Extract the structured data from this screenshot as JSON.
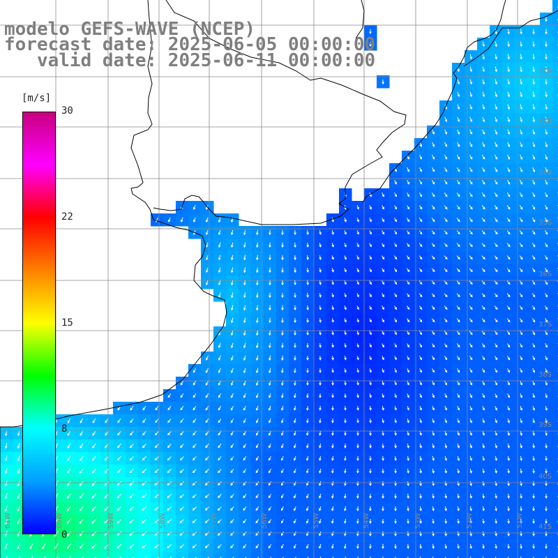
{
  "title": {
    "line1": "modelo GEFS-WAVE (NCEP)",
    "line2": "forecast date: 2025-06-05 00:00:00",
    "line3": "   valid date: 2025-06-11 00:00:00"
  },
  "colorbar": {
    "unit": "[m/s]",
    "ticks": [
      "30",
      "22",
      "15",
      "8",
      "0"
    ],
    "min": 0,
    "max": 30,
    "colors": [
      "#0000ff",
      "#00a0ff",
      "#00ffff",
      "#00ff00",
      "#ffff00",
      "#ff8000",
      "#ff0000",
      "#ff00ff",
      "#c80080"
    ]
  },
  "map": {
    "type": "wind speed and direction map",
    "lat_labels": [
      "32S",
      "33S",
      "34S",
      "35S",
      "36S",
      "37S",
      "38S",
      "39S",
      "40S",
      "41S"
    ],
    "lon_labels": [
      "61W",
      "60W",
      "59W",
      "58W",
      "57W",
      "56W",
      "55W",
      "54W",
      "53W",
      "52W",
      "51W"
    ],
    "grid": true,
    "land_color": "#ffffff",
    "coastline_color": "#000000",
    "arrow_color": "#ffffff"
  }
}
